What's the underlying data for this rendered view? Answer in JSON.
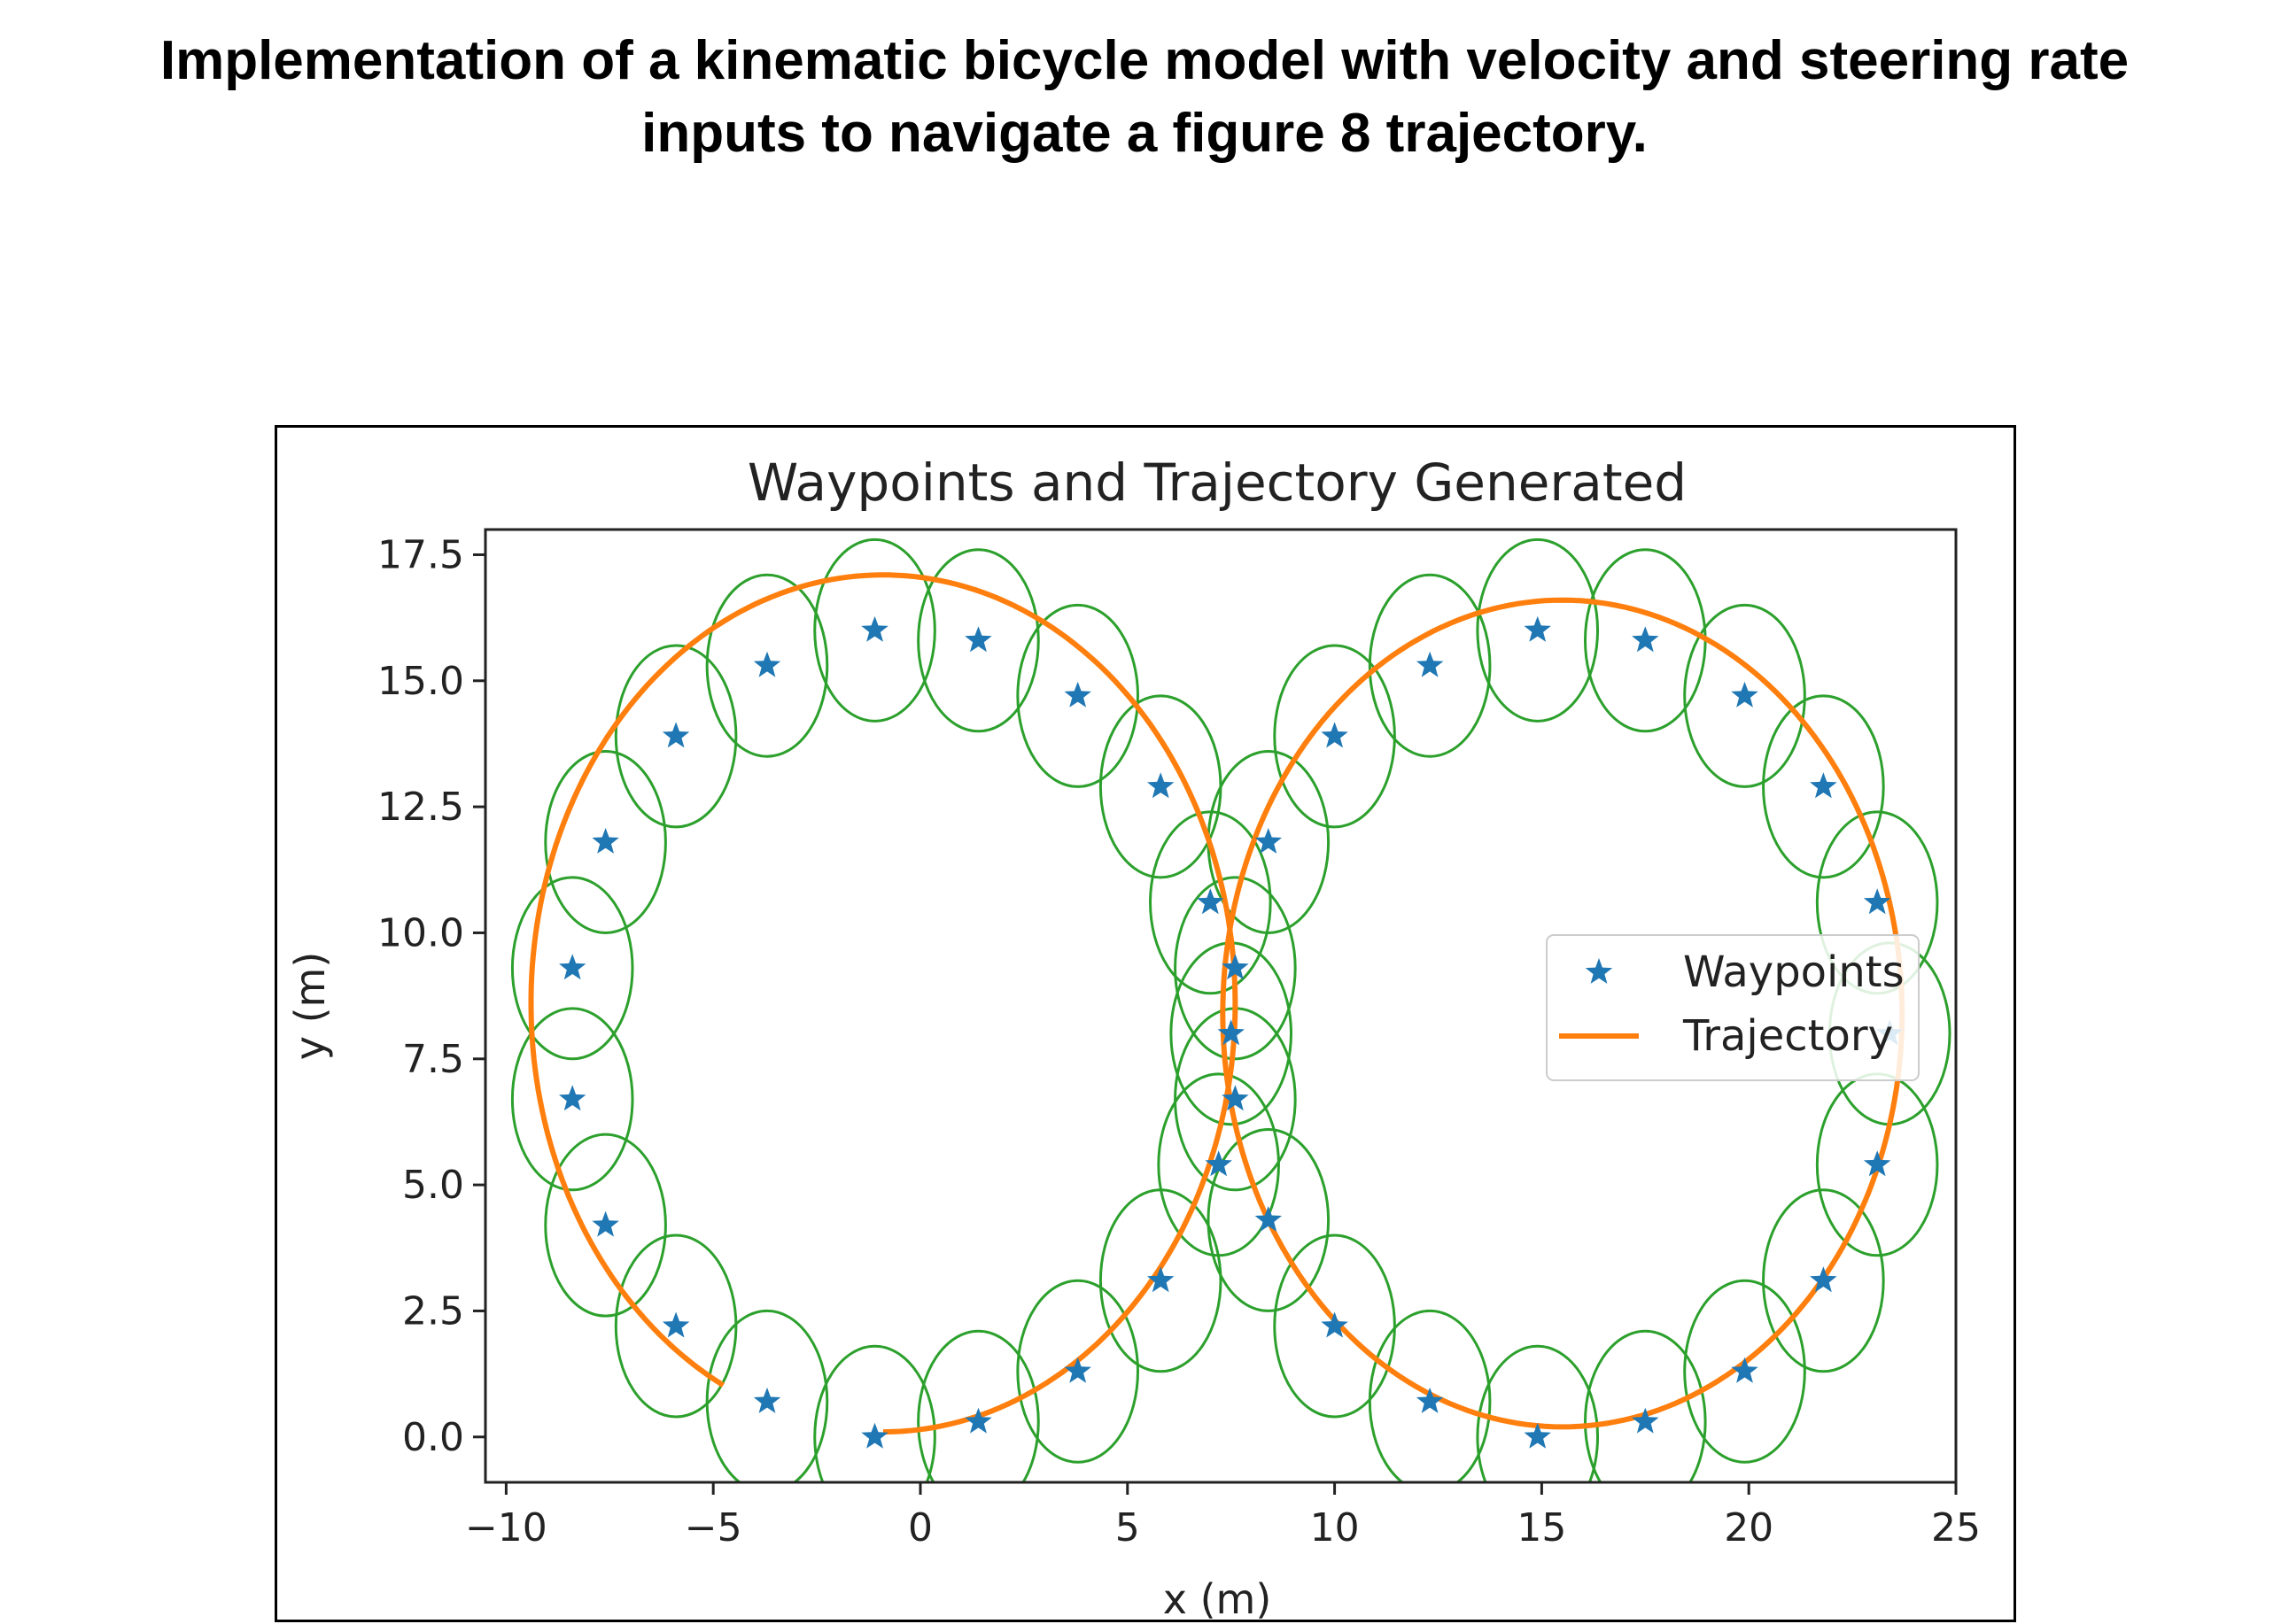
{
  "heading": {
    "line1": "Implementation of a kinematic bicycle model with velocity and steering rate",
    "line2": "inputs to navigate a figure 8 trajectory."
  },
  "chart_data": {
    "type": "scatter",
    "title": "Waypoints and Trajectory Generated",
    "xlabel": "x (m)",
    "ylabel": "y (m)",
    "xlim": [
      -10.5,
      25
    ],
    "ylim": [
      -0.9,
      18
    ],
    "xticks": [
      -10,
      -5,
      0,
      5,
      10,
      15,
      20,
      25
    ],
    "xtick_labels": [
      "−10",
      "−5",
      "0",
      "5",
      "10",
      "15",
      "20",
      "25"
    ],
    "yticks": [
      0,
      2.5,
      5,
      7.5,
      10,
      12.5,
      15,
      17.5
    ],
    "ytick_labels": [
      "0.0",
      "2.5",
      "5.0",
      "7.5",
      "10.0",
      "12.5",
      "15.0",
      "17.5"
    ],
    "grid": false,
    "legend_position": "center-right",
    "series": [
      {
        "name": "Waypoints",
        "marker": "star",
        "color": "#1f77b4",
        "points": [
          [
            -1.1,
            0.0
          ],
          [
            1.4,
            0.3
          ],
          [
            3.8,
            1.3
          ],
          [
            5.8,
            3.1
          ],
          [
            7.2,
            5.4
          ],
          [
            7.6,
            6.7
          ],
          [
            7.5,
            8.0
          ],
          [
            7.6,
            9.3
          ],
          [
            7.0,
            10.6
          ],
          [
            5.8,
            12.9
          ],
          [
            3.8,
            14.7
          ],
          [
            1.4,
            15.8
          ],
          [
            -1.1,
            16.0
          ],
          [
            -3.7,
            15.3
          ],
          [
            -5.9,
            13.9
          ],
          [
            -7.6,
            11.8
          ],
          [
            -8.4,
            9.3
          ],
          [
            -8.4,
            6.7
          ],
          [
            -7.6,
            4.2
          ],
          [
            -5.9,
            2.2
          ],
          [
            -3.7,
            0.7
          ],
          [
            8.4,
            4.3
          ],
          [
            10.0,
            2.2
          ],
          [
            12.3,
            0.7
          ],
          [
            14.9,
            0.0
          ],
          [
            17.5,
            0.3
          ],
          [
            19.9,
            1.3
          ],
          [
            21.8,
            3.1
          ],
          [
            23.1,
            5.4
          ],
          [
            23.4,
            8.0
          ],
          [
            23.1,
            10.6
          ],
          [
            21.8,
            12.9
          ],
          [
            19.9,
            14.7
          ],
          [
            17.5,
            15.8
          ],
          [
            14.9,
            16.0
          ],
          [
            12.3,
            15.3
          ],
          [
            10.0,
            13.9
          ],
          [
            8.4,
            11.8
          ]
        ]
      },
      {
        "name": "Trajectory",
        "color": "#ff7f0e",
        "loops": [
          {
            "cx": -0.9,
            "cy": 8.6,
            "r": 8.5,
            "from_deg": -90,
            "to_deg": 243
          },
          {
            "cx": 15.5,
            "cy": 8.4,
            "r": 8.2,
            "from_deg": 0,
            "to_deg": 360
          }
        ]
      },
      {
        "name": "tolerance circles",
        "color": "#2ca02c",
        "radius_x": 1.45,
        "radius_y": 1.8
      }
    ]
  }
}
